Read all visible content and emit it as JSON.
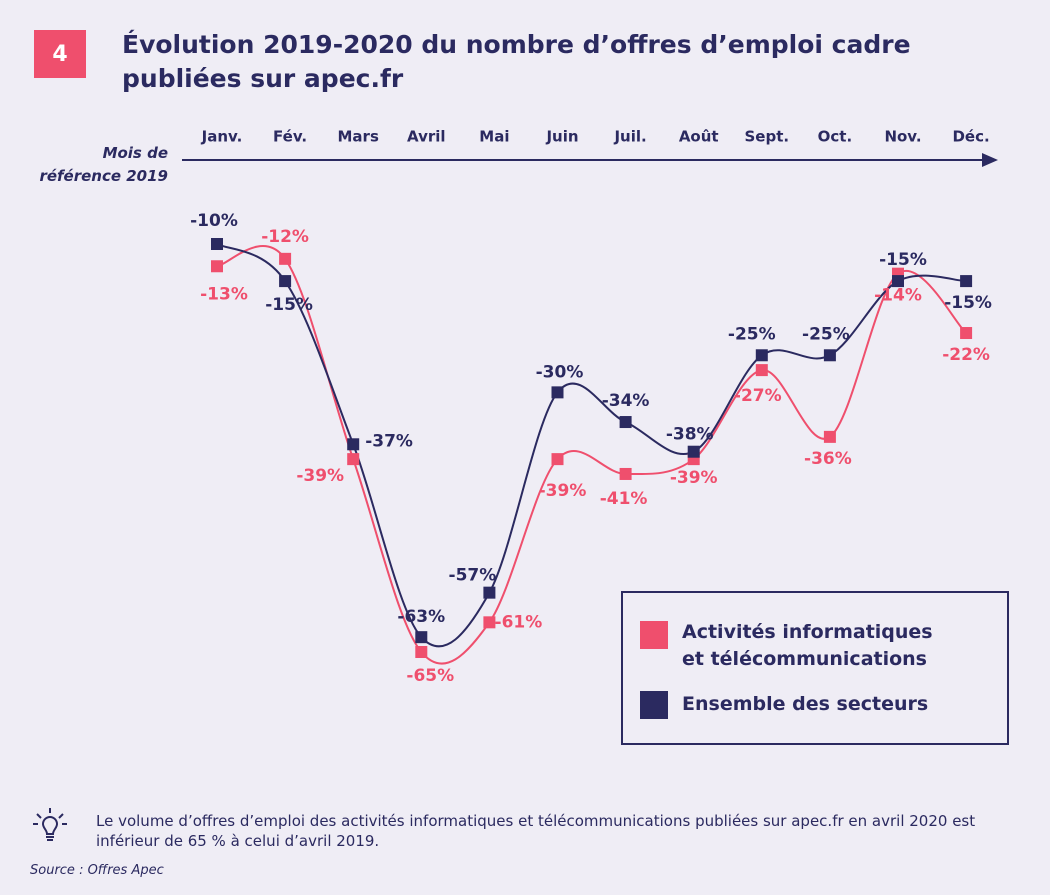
{
  "chart_data": {
    "type": "line",
    "figure_number": "4",
    "title": "Évolution 2019-2020 du nombre d’offres d’emploi cadre publiées sur apec.fr",
    "x_label": "Mois de référence 2019",
    "categories": [
      "Janv.",
      "Fév.",
      "Mars",
      "Avril",
      "Mai",
      "Juin",
      "Juil.",
      "Août",
      "Sept.",
      "Oct.",
      "Nov.",
      "Déc."
    ],
    "series": [
      {
        "name": "Activités informatiques et télécommunications",
        "color": "#ef4f6d",
        "values": [
          -13,
          -12,
          -39,
          -65,
          -61,
          -39,
          -41,
          -39,
          -27,
          -36,
          -14,
          -22
        ],
        "value_labels": [
          "-13%",
          "-12%",
          "-39%",
          "-65%",
          "-61%",
          "-39%",
          "-41%",
          "-39%",
          "-27%",
          "-36%",
          "-14%",
          "-22%"
        ]
      },
      {
        "name": "Ensemble des secteurs",
        "color": "#2b2a60",
        "values": [
          -10,
          -15,
          -37,
          -63,
          -57,
          -30,
          -34,
          -38,
          -25,
          -25,
          -15,
          -15
        ],
        "value_labels": [
          "-10%",
          "-15%",
          "-37%",
          "-63%",
          "-57%",
          "-30%",
          "-34%",
          "-38%",
          "-25%",
          "-25%",
          "-15%",
          "-15%"
        ]
      }
    ],
    "note": "Le volume d’offres d’emploi des activités informatiques et télécommunications publiées sur apec.fr en avril 2020 est inférieur de 65 % à celui d’avril 2019.",
    "source": "Source : Offres Apec"
  }
}
